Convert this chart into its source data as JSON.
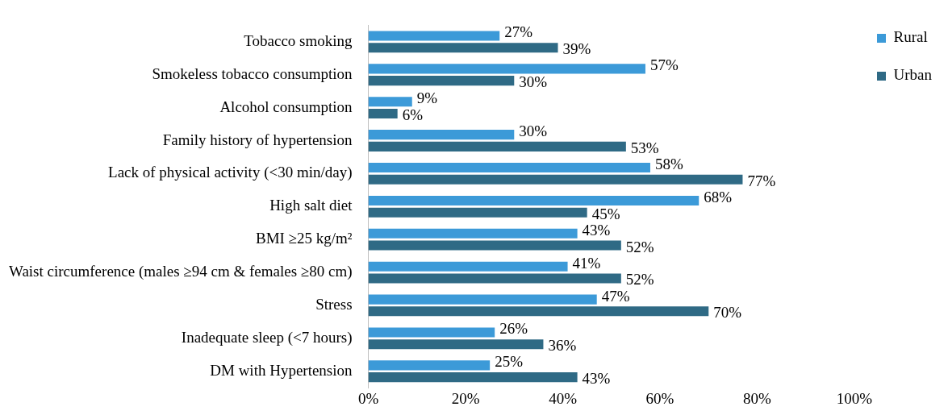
{
  "chart_data": {
    "type": "bar",
    "orientation": "horizontal",
    "categories": [
      "Tobacco smoking",
      "Smokeless tobacco consumption",
      "Alcohol consumption",
      "Family history of hypertension",
      "Lack of physical activity (<30 min/day)",
      "High salt diet",
      "BMI ≥25 kg/m²",
      "Waist circumference (males ≥94 cm & females ≥80 cm)",
      "Stress",
      "Inadequate sleep (<7 hours)",
      "DM with Hypertension"
    ],
    "series": [
      {
        "name": "Rural",
        "color": "#3c9ad8",
        "values": [
          27,
          57,
          9,
          30,
          58,
          68,
          43,
          41,
          47,
          26,
          25
        ],
        "value_labels": [
          "27%",
          "57%",
          "9%",
          "30%",
          "58%",
          "68%",
          "43%",
          "41%",
          "47%",
          "26%",
          "25%"
        ]
      },
      {
        "name": "Urban",
        "color": "#2f6a85",
        "values": [
          39,
          30,
          6,
          53,
          77,
          45,
          52,
          52,
          70,
          36,
          43
        ],
        "value_labels": [
          "39%",
          "30%",
          "6%",
          "53%",
          "77%",
          "45%",
          "52%",
          "52%",
          "70%",
          "36%",
          "43%"
        ]
      }
    ],
    "xlim": [
      0,
      100
    ],
    "xticks": [
      {
        "value": 0,
        "label": "0%"
      },
      {
        "value": 20,
        "label": "20%"
      },
      {
        "value": 40,
        "label": "40%"
      },
      {
        "value": 60,
        "label": "60%"
      },
      {
        "value": 80,
        "label": "80%"
      },
      {
        "value": 100,
        "label": "100%"
      }
    ],
    "grid": false,
    "legend": "top right"
  }
}
